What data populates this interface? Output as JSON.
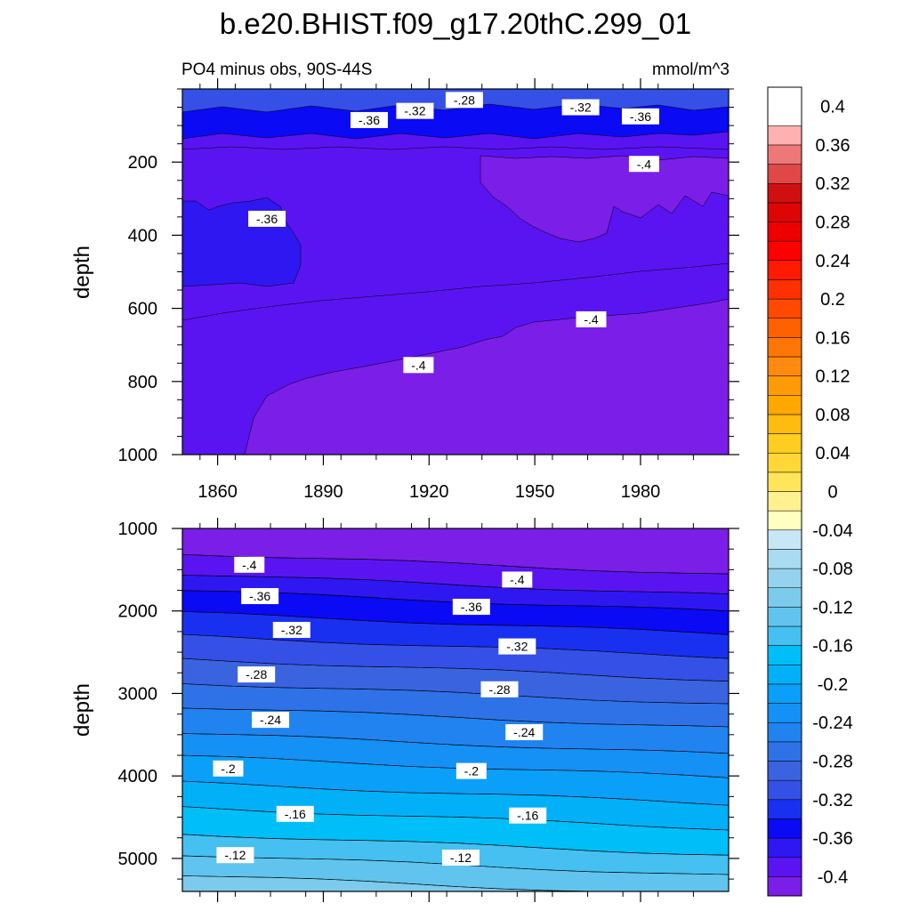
{
  "chart_data": {
    "type": "heatmap",
    "title": "b.e20.BHIST.f09_g17.20thC.299_01",
    "subtitle_left": "PO4 minus obs, 90S-44S",
    "units": "mmol/m^3",
    "ylabel": "depth",
    "xlim": [
      1850,
      2005
    ],
    "x_ticks": [
      1860,
      1890,
      1920,
      1950,
      1980
    ],
    "x_tick_labels": [
      "1860",
      "1890",
      "1920",
      "1950",
      "1980"
    ],
    "panels": [
      {
        "name": "upper",
        "ylim": [
          0,
          1000
        ],
        "y_ticks": [
          200,
          400,
          600,
          800,
          1000
        ],
        "y_tick_labels": [
          "200",
          "400",
          "600",
          "800",
          "1000"
        ],
        "contour_labels": [
          {
            "text": "-.28",
            "x": 1930,
            "y": 30
          },
          {
            "text": "-.32",
            "x": 1916,
            "y": 60
          },
          {
            "text": "-.32",
            "x": 1963,
            "y": 50
          },
          {
            "text": "-.36",
            "x": 1903,
            "y": 85
          },
          {
            "text": "-.36",
            "x": 1980,
            "y": 75
          },
          {
            "text": "-.4",
            "x": 1981,
            "y": 205
          },
          {
            "text": "-.36",
            "x": 1874,
            "y": 355
          },
          {
            "text": "-.4",
            "x": 1966,
            "y": 630
          },
          {
            "text": "-.4",
            "x": 1917,
            "y": 755
          }
        ]
      },
      {
        "name": "lower",
        "ylim": [
          1000,
          5400
        ],
        "y_ticks": [
          1000,
          2000,
          3000,
          4000,
          5000
        ],
        "y_tick_labels": [
          "1000",
          "2000",
          "3000",
          "4000",
          "5000"
        ],
        "contour_labels": [
          {
            "text": "-.4",
            "x": 1869,
            "y": 1440
          },
          {
            "text": "-.4",
            "x": 1945,
            "y": 1620
          },
          {
            "text": "-.36",
            "x": 1872,
            "y": 1820
          },
          {
            "text": "-.36",
            "x": 1932,
            "y": 1950
          },
          {
            "text": "-.32",
            "x": 1881,
            "y": 2230
          },
          {
            "text": "-.32",
            "x": 1945,
            "y": 2430
          },
          {
            "text": "-.28",
            "x": 1871,
            "y": 2770
          },
          {
            "text": "-.28",
            "x": 1940,
            "y": 2950
          },
          {
            "text": "-.24",
            "x": 1875,
            "y": 3320
          },
          {
            "text": "-.24",
            "x": 1947,
            "y": 3470
          },
          {
            "text": "-.2",
            "x": 1863,
            "y": 3910
          },
          {
            "text": "-.2",
            "x": 1932,
            "y": 3940
          },
          {
            "text": "-.16",
            "x": 1882,
            "y": 4460
          },
          {
            "text": "-.16",
            "x": 1948,
            "y": 4480
          },
          {
            "text": "-.12",
            "x": 1865,
            "y": 4960
          },
          {
            "text": "-.12",
            "x": 1929,
            "y": 4990
          }
        ]
      }
    ],
    "colorbar": {
      "levels": [
        -0.42,
        -0.4,
        -0.38,
        -0.36,
        -0.34,
        -0.32,
        -0.3,
        -0.28,
        -0.26,
        -0.24,
        -0.22,
        -0.2,
        -0.18,
        -0.16,
        -0.14,
        -0.12,
        -0.1,
        -0.08,
        -0.06,
        -0.04,
        -0.02,
        0,
        0.02,
        0.04,
        0.06,
        0.08,
        0.1,
        0.12,
        0.14,
        0.16,
        0.18,
        0.2,
        0.22,
        0.24,
        0.26,
        0.28,
        0.3,
        0.32,
        0.34,
        0.36,
        0.38,
        0.4,
        0.42
      ],
      "colors": [
        "#7a1ee8",
        "#5a14f2",
        "#2f17f2",
        "#0a0af5",
        "#1a30f0",
        "#3550e6",
        "#3a63e0",
        "#2f72e8",
        "#2083f0",
        "#1590f5",
        "#0a9ff8",
        "#02b0f8",
        "#00bff8",
        "#45c0f0",
        "#60c4ee",
        "#7ccaec",
        "#95d2ee",
        "#a9dbf1",
        "#c7e6f6",
        "#ffffc0",
        "#fff090",
        "#ffe55a",
        "#ffd838",
        "#ffcc20",
        "#ffbb10",
        "#ffa800",
        "#ff9a08",
        "#ff8a10",
        "#ff7608",
        "#ff6000",
        "#ff4a00",
        "#ff3000",
        "#ff1a00",
        "#ff0000",
        "#ee0000",
        "#dd0505",
        "#d01010",
        "#e04848",
        "#ee7777",
        "#ffb0b0"
      ],
      "tick_labels": [
        "-0.4",
        "-0.36",
        "-0.32",
        "-0.28",
        "-0.24",
        "-0.2",
        "-0.16",
        "-0.12",
        "-0.08",
        "-0.04",
        "0",
        "0.04",
        "0.08",
        "0.12",
        "0.16",
        "0.2",
        "0.24",
        "0.28",
        "0.32",
        "0.36",
        "0.4"
      ],
      "tick_values": [
        -0.4,
        -0.36,
        -0.32,
        -0.28,
        -0.24,
        -0.2,
        -0.16,
        -0.12,
        -0.08,
        -0.04,
        0,
        0.04,
        0.08,
        0.12,
        0.16,
        0.2,
        0.24,
        0.28,
        0.32,
        0.36,
        0.4
      ]
    }
  }
}
